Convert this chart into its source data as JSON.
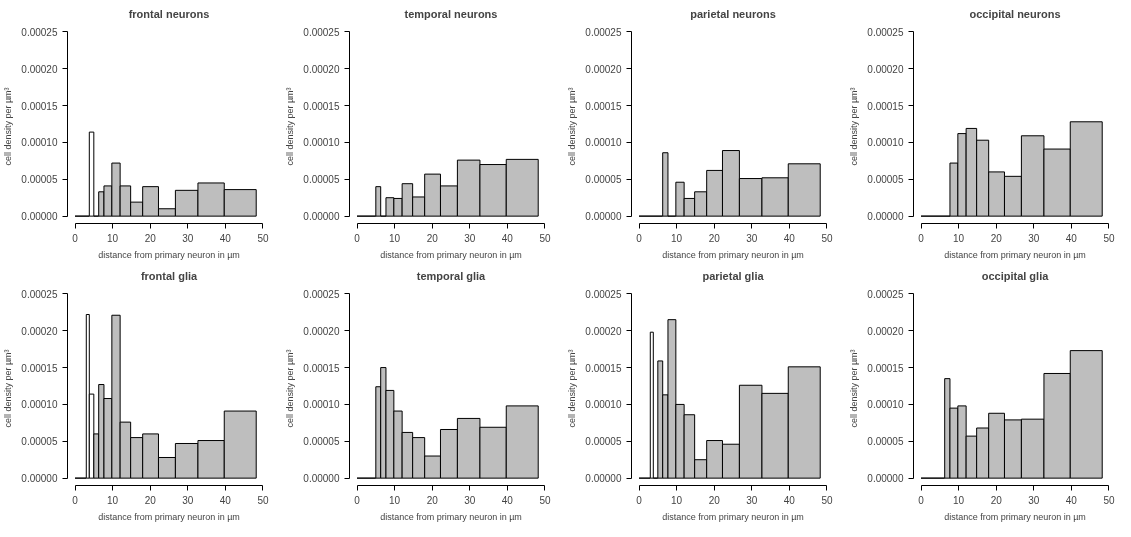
{
  "chart_data": [
    {
      "type": "histogram",
      "title": "frontal neurons",
      "xlabel": "distance from primary neuron in µm",
      "ylabel": "cell density  per  µm³",
      "colors": [
        "#000000",
        "#ffffff",
        "#000000",
        "#bebebe",
        "#bebebe",
        "#bebebe",
        "#bebebe",
        "#bebebe",
        "#bebebe",
        "#bebebe",
        "#bebebe",
        "#bebebe",
        "#bebebe"
      ],
      "bins": [
        0,
        3.8,
        5.0,
        6.3,
        7.7,
        9.8,
        12,
        14.8,
        18,
        22.2,
        26.7,
        32.7,
        39.7,
        48.2
      ],
      "values": [
        0,
        0.000114,
        0,
        3.3e-05,
        4.1e-05,
        7.2e-05,
        4.1e-05,
        1.9e-05,
        4e-05,
        1e-05,
        3.5e-05,
        4.5e-05,
        3.6e-05
      ],
      "xlim": [
        0,
        50
      ],
      "ylim": [
        0,
        0.00025
      ],
      "xticks": [
        0,
        10,
        20,
        30,
        40,
        50
      ],
      "yticks": [
        {
          "value": 0,
          "label": "0.00000"
        },
        {
          "value": 5e-05,
          "label": "0.00005"
        },
        {
          "value": 0.0001,
          "label": "0.00010"
        },
        {
          "value": 0.00015,
          "label": "0.00015"
        },
        {
          "value": 0.0002,
          "label": "0.00020"
        },
        {
          "value": 0.00025,
          "label": "0.00025"
        }
      ],
      "grid": false
    },
    {
      "type": "histogram",
      "title": "temporal neurons",
      "xlabel": "distance from primary neuron in µm",
      "ylabel": "cell density  per  µm³",
      "colors": [
        "#000000",
        "#bebebe",
        "#000000",
        "#bebebe",
        "#bebebe",
        "#bebebe",
        "#bebebe",
        "#bebebe",
        "#bebebe",
        "#bebebe",
        "#bebebe",
        "#bebebe"
      ],
      "bins": [
        0,
        5.0,
        6.3,
        7.7,
        9.8,
        12,
        14.8,
        18,
        22.2,
        26.7,
        32.7,
        39.7,
        48.2
      ],
      "values": [
        0,
        4e-05,
        0,
        2.5e-05,
        2.4e-05,
        4.4e-05,
        2.6e-05,
        5.7e-05,
        4.1e-05,
        7.6e-05,
        7e-05,
        7.7e-05
      ],
      "xlim": [
        0,
        50
      ],
      "ylim": [
        0,
        0.00025
      ],
      "xticks": [
        0,
        10,
        20,
        30,
        40,
        50
      ],
      "yticks": [
        {
          "value": 0,
          "label": "0.00000"
        },
        {
          "value": 5e-05,
          "label": "0.00005"
        },
        {
          "value": 0.0001,
          "label": "0.00010"
        },
        {
          "value": 0.00015,
          "label": "0.00015"
        },
        {
          "value": 0.0002,
          "label": "0.00020"
        },
        {
          "value": 0.00025,
          "label": "0.00025"
        }
      ],
      "grid": false
    },
    {
      "type": "histogram",
      "title": "parietal neurons",
      "xlabel": "distance from primary neuron in µm",
      "ylabel": "cell density  per  µm³",
      "colors": [
        "#000000",
        "#bebebe",
        "#000000",
        "#bebebe",
        "#bebebe",
        "#bebebe",
        "#bebebe",
        "#bebebe",
        "#bebebe",
        "#bebebe",
        "#bebebe"
      ],
      "bins": [
        0,
        6.3,
        7.7,
        9.8,
        12,
        14.8,
        18,
        22.2,
        26.7,
        32.7,
        39.7,
        48.2
      ],
      "values": [
        0,
        8.6e-05,
        0,
        4.6e-05,
        2.4e-05,
        3.3e-05,
        6.2e-05,
        8.9e-05,
        5.1e-05,
        5.2e-05,
        7.1e-05
      ],
      "xlim": [
        0,
        50
      ],
      "ylim": [
        0,
        0.00025
      ],
      "xticks": [
        0,
        10,
        20,
        30,
        40,
        50
      ],
      "yticks": [
        {
          "value": 0,
          "label": "0.00000"
        },
        {
          "value": 5e-05,
          "label": "0.00005"
        },
        {
          "value": 0.0001,
          "label": "0.00010"
        },
        {
          "value": 0.00015,
          "label": "0.00015"
        },
        {
          "value": 0.0002,
          "label": "0.00020"
        },
        {
          "value": 0.00025,
          "label": "0.00025"
        }
      ],
      "grid": false
    },
    {
      "type": "histogram",
      "title": "occipital neurons",
      "xlabel": "distance from primary neuron in µm",
      "ylabel": "cell density  per  µm³",
      "colors": [
        "#000000",
        "#bebebe",
        "#bebebe",
        "#bebebe",
        "#bebebe",
        "#bebebe",
        "#bebebe",
        "#bebebe",
        "#bebebe",
        "#bebebe"
      ],
      "bins": [
        0,
        7.7,
        9.8,
        12,
        14.8,
        18,
        22.2,
        26.7,
        32.7,
        39.7,
        48.2
      ],
      "values": [
        0,
        7.2e-05,
        0.000112,
        0.000119,
        0.000103,
        6e-05,
        5.4e-05,
        0.000109,
        9.1e-05,
        0.000128
      ],
      "xlim": [
        0,
        50
      ],
      "ylim": [
        0,
        0.00025
      ],
      "xticks": [
        0,
        10,
        20,
        30,
        40,
        50
      ],
      "yticks": [
        {
          "value": 0,
          "label": "0.00000"
        },
        {
          "value": 5e-05,
          "label": "0.00005"
        },
        {
          "value": 0.0001,
          "label": "0.00010"
        },
        {
          "value": 0.00015,
          "label": "0.00015"
        },
        {
          "value": 0.0002,
          "label": "0.00020"
        },
        {
          "value": 0.00025,
          "label": "0.00025"
        }
      ],
      "grid": false
    },
    {
      "type": "histogram",
      "title": "frontal glia",
      "xlabel": "distance from primary neuron in µm",
      "ylabel": "cell density  per  µm³",
      "colors": [
        "#000000",
        "#ffffff",
        "#ffffff",
        "#bebebe",
        "#bebebe",
        "#bebebe",
        "#bebebe",
        "#bebebe",
        "#bebebe",
        "#bebebe",
        "#bebebe",
        "#bebebe",
        "#bebebe",
        "#bebebe"
      ],
      "bins": [
        0,
        3.0,
        3.8,
        5.0,
        6.3,
        7.7,
        9.8,
        12,
        14.8,
        18,
        22.2,
        26.7,
        32.7,
        39.7,
        48.2
      ],
      "values": [
        0,
        0.000222,
        0.000114,
        6e-05,
        0.000127,
        0.000108,
        0.000221,
        7.6e-05,
        5.5e-05,
        6e-05,
        2.8e-05,
        4.7e-05,
        5.1e-05,
        9.1e-05
      ],
      "xlim": [
        0,
        50
      ],
      "ylim": [
        0,
        0.00025
      ],
      "xticks": [
        0,
        10,
        20,
        30,
        40,
        50
      ],
      "yticks": [
        {
          "value": 0,
          "label": "0.00000"
        },
        {
          "value": 5e-05,
          "label": "0.00005"
        },
        {
          "value": 0.0001,
          "label": "0.00010"
        },
        {
          "value": 0.00015,
          "label": "0.00015"
        },
        {
          "value": 0.0002,
          "label": "0.00020"
        },
        {
          "value": 0.00025,
          "label": "0.00025"
        }
      ],
      "grid": false
    },
    {
      "type": "histogram",
      "title": "temporal glia",
      "xlabel": "distance from primary neuron in µm",
      "ylabel": "cell density  per  µm³",
      "colors": [
        "#000000",
        "#bebebe",
        "#bebebe",
        "#bebebe",
        "#bebebe",
        "#bebebe",
        "#bebebe",
        "#bebebe",
        "#bebebe",
        "#bebebe",
        "#bebebe",
        "#bebebe"
      ],
      "bins": [
        0,
        5.0,
        6.3,
        7.7,
        9.8,
        12,
        14.8,
        18,
        22.2,
        26.7,
        32.7,
        39.7,
        48.2
      ],
      "values": [
        0,
        0.000124,
        0.00015,
        0.000119,
        9.1e-05,
        6.2e-05,
        5.5e-05,
        3e-05,
        6.6e-05,
        8.1e-05,
        6.9e-05,
        9.8e-05
      ],
      "xlim": [
        0,
        50
      ],
      "ylim": [
        0,
        0.00025
      ],
      "xticks": [
        0,
        10,
        20,
        30,
        40,
        50
      ],
      "yticks": [
        {
          "value": 0,
          "label": "0.00000"
        },
        {
          "value": 5e-05,
          "label": "0.00005"
        },
        {
          "value": 0.0001,
          "label": "0.00010"
        },
        {
          "value": 0.00015,
          "label": "0.00015"
        },
        {
          "value": 0.0002,
          "label": "0.00020"
        },
        {
          "value": 0.00025,
          "label": "0.00025"
        }
      ],
      "grid": false
    },
    {
      "type": "histogram",
      "title": "parietal glia",
      "xlabel": "distance from primary neuron in µm",
      "ylabel": "cell density  per  µm³",
      "colors": [
        "#000000",
        "#ffffff",
        "#000000",
        "#bebebe",
        "#bebebe",
        "#bebebe",
        "#bebebe",
        "#bebebe",
        "#bebebe",
        "#bebebe",
        "#bebebe",
        "#bebebe",
        "#bebebe",
        "#bebebe"
      ],
      "bins": [
        0,
        3.0,
        3.8,
        5.0,
        6.3,
        7.7,
        9.8,
        12,
        14.8,
        18,
        22.2,
        26.7,
        32.7,
        39.7,
        48.2
      ],
      "values": [
        0,
        0.000198,
        0,
        0.000159,
        0.000113,
        0.000215,
        0.0001,
        8.6e-05,
        2.5e-05,
        5.1e-05,
        4.6e-05,
        0.000126,
        0.000115,
        0.000151
      ],
      "xlim": [
        0,
        50
      ],
      "ylim": [
        0,
        0.00025
      ],
      "xticks": [
        0,
        10,
        20,
        30,
        40,
        50
      ],
      "yticks": [
        {
          "value": 0,
          "label": "0.00000"
        },
        {
          "value": 5e-05,
          "label": "0.00005"
        },
        {
          "value": 0.0001,
          "label": "0.00010"
        },
        {
          "value": 0.00015,
          "label": "0.00015"
        },
        {
          "value": 0.0002,
          "label": "0.00020"
        },
        {
          "value": 0.00025,
          "label": "0.00025"
        }
      ],
      "grid": false
    },
    {
      "type": "histogram",
      "title": "occipital glia",
      "xlabel": "distance from primary neuron in µm",
      "ylabel": "cell density  per  µm³",
      "colors": [
        "#000000",
        "#bebebe",
        "#bebebe",
        "#bebebe",
        "#bebebe",
        "#bebebe",
        "#bebebe",
        "#bebebe",
        "#bebebe",
        "#bebebe",
        "#bebebe"
      ],
      "bins": [
        0,
        6.3,
        7.7,
        9.8,
        12,
        14.8,
        18,
        22.2,
        26.7,
        32.7,
        39.7,
        48.2
      ],
      "values": [
        0,
        0.000135,
        9.5e-05,
        9.8e-05,
        5.7e-05,
        6.8e-05,
        8.8e-05,
        7.9e-05,
        8e-05,
        0.000142,
        0.000173
      ],
      "xlim": [
        0,
        50
      ],
      "ylim": [
        0,
        0.00025
      ],
      "xticks": [
        0,
        10,
        20,
        30,
        40,
        50
      ],
      "yticks": [
        {
          "value": 0,
          "label": "0.00000"
        },
        {
          "value": 5e-05,
          "label": "0.00005"
        },
        {
          "value": 0.0001,
          "label": "0.00010"
        },
        {
          "value": 0.00015,
          "label": "0.00015"
        },
        {
          "value": 0.0002,
          "label": "0.00020"
        },
        {
          "value": 0.00025,
          "label": "0.00025"
        }
      ],
      "grid": false
    }
  ]
}
